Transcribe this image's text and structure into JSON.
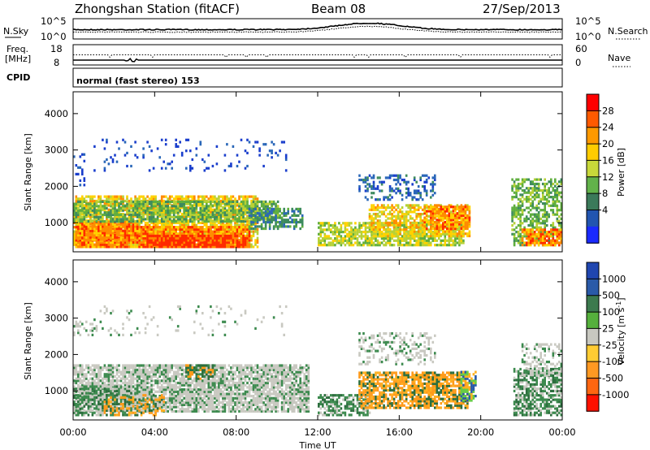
{
  "header": {
    "title": "Zhongshan Station (fitACF)",
    "beam": "Beam 08",
    "date": "27/Sep/2013"
  },
  "side_labels": {
    "nsky": "N.Sky",
    "nsearch": "N.Search",
    "freq_line1": "Freq.",
    "freq_line2": "[MHz]",
    "nave": "Nave",
    "cpid": "CPID"
  },
  "top_ticks": {
    "noise_left_top": "10^5",
    "noise_left_bottom": "10^0",
    "noise_right_top": "10^5",
    "noise_right_bottom": "10^0",
    "freq_left_top": "18",
    "freq_left_bottom": "8",
    "nave_right_top": "60",
    "nave_right_bottom": "0"
  },
  "cpid_text": "normal (fast stereo) 153",
  "xlabel": "Time UT",
  "chart_data": [
    {
      "type": "heatmap",
      "panel": "power",
      "ylabel": "Slant Range [km]",
      "y_ticks": [
        "1000",
        "2000",
        "3000",
        "4000"
      ],
      "ylim": [
        200,
        4600
      ],
      "x_ticks": [
        "00:00",
        "04:00",
        "08:00",
        "12:00",
        "16:00",
        "20:00",
        "00:00"
      ],
      "xlim_hours": [
        0,
        24
      ],
      "colorbar_label": "Power [dB]",
      "colorbar_ticks": [
        "28",
        "24",
        "20",
        "16",
        "12",
        "8",
        "4"
      ],
      "colorbar_colors": [
        "#ff0000",
        "#ff5a00",
        "#ff9900",
        "#ffcc00",
        "#c8d83a",
        "#62b24a",
        "#3b7a5a",
        "#2255b0",
        "#1a2aff"
      ],
      "colors": [
        "#1a3ecc",
        "#2a67b8",
        "#3d8b5e",
        "#5fae3e",
        "#b6d136",
        "#ffd200",
        "#ff8a00",
        "#ff2a00"
      ],
      "regions": [
        {
          "t": [
            0.0,
            9.0
          ],
          "r": [
            300,
            1700
          ],
          "base": 5,
          "den": 0.75
        },
        {
          "t": [
            0.1,
            8.6
          ],
          "r": [
            300,
            900
          ],
          "base": 6,
          "den": 0.9
        },
        {
          "t": [
            3.6,
            8.4
          ],
          "r": [
            300,
            650
          ],
          "base": 7,
          "den": 0.95
        },
        {
          "t": [
            0.2,
            3.2
          ],
          "r": [
            500,
            1000
          ],
          "base": 6,
          "den": 0.85
        },
        {
          "t": [
            0.0,
            10.0
          ],
          "r": [
            1000,
            1550
          ],
          "base": 3,
          "den": 0.7
        },
        {
          "t": [
            8.6,
            11.2
          ],
          "r": [
            800,
            1400
          ],
          "base": 2,
          "den": 0.6
        },
        {
          "t": [
            12.0,
            19.2
          ],
          "r": [
            350,
            1000
          ],
          "base": 4,
          "den": 0.7
        },
        {
          "t": [
            14.5,
            19.5
          ],
          "r": [
            600,
            1500
          ],
          "base": 5,
          "den": 0.6
        },
        {
          "t": [
            17.2,
            19.5
          ],
          "r": [
            800,
            1450
          ],
          "base": 6,
          "den": 0.7
        },
        {
          "t": [
            14.0,
            17.8
          ],
          "r": [
            1600,
            2300
          ],
          "base": 1,
          "den": 0.35
        },
        {
          "t": [
            21.5,
            24.0
          ],
          "r": [
            350,
            2200
          ],
          "base": 3,
          "den": 0.55
        },
        {
          "t": [
            22.0,
            24.0
          ],
          "r": [
            350,
            800
          ],
          "base": 6,
          "den": 0.75
        },
        {
          "t": [
            0.0,
            0.6
          ],
          "r": [
            2000,
            2900
          ],
          "base": 0,
          "den": 0.25
        },
        {
          "t": [
            1.0,
            10.5
          ],
          "r": [
            2400,
            3300
          ],
          "base": 0,
          "den": 0.08
        }
      ]
    },
    {
      "type": "heatmap",
      "panel": "velocity",
      "ylabel": "Slant Range [km]",
      "y_ticks": [
        "1000",
        "2000",
        "3000",
        "4000"
      ],
      "ylim": [
        200,
        4600
      ],
      "x_ticks": [
        "00:00",
        "04:00",
        "08:00",
        "12:00",
        "16:00",
        "20:00",
        "00:00"
      ],
      "xlim_hours": [
        0,
        24
      ],
      "colorbar_label": "Velocity [m s^-1]",
      "colorbar_ticks": [
        "1000",
        "500",
        "100",
        "25",
        "-25",
        "-100",
        "-500",
        "-1000"
      ],
      "colorbar_colors": [
        "#2046b0",
        "#2a5aa8",
        "#3c7a4e",
        "#55b03c",
        "#c8c8c0",
        "#ffcc33",
        "#ff9922",
        "#ff6611",
        "#ff1100"
      ],
      "colors": [
        "#c9c9c1",
        "#3c8a4e",
        "#2c6e3e",
        "#ff9a1a",
        "#ffb020",
        "#66cc44",
        "#2a5aa8"
      ],
      "regions": [
        {
          "t": [
            0.0,
            11.5
          ],
          "r": [
            400,
            1700
          ],
          "base": 0,
          "den": 0.8
        },
        {
          "t": [
            0.0,
            3.2
          ],
          "r": [
            300,
            1100
          ],
          "base": 1,
          "den": 0.6
        },
        {
          "t": [
            1.5,
            4.5
          ],
          "r": [
            300,
            900
          ],
          "base": 3,
          "den": 0.35
        },
        {
          "t": [
            5.5,
            6.8
          ],
          "r": [
            1300,
            1700
          ],
          "base": 2,
          "den": 0.6
        },
        {
          "t": [
            12.0,
            14.5
          ],
          "r": [
            300,
            900
          ],
          "base": 1,
          "den": 0.65
        },
        {
          "t": [
            14.0,
            19.4
          ],
          "r": [
            500,
            1500
          ],
          "base": 3,
          "den": 0.75
        },
        {
          "t": [
            19.0,
            19.8
          ],
          "r": [
            700,
            1500
          ],
          "base": 5,
          "den": 0.7
        },
        {
          "t": [
            14.0,
            17.8
          ],
          "r": [
            1700,
            2600
          ],
          "base": 0,
          "den": 0.3
        },
        {
          "t": [
            21.6,
            24.0
          ],
          "r": [
            300,
            1600
          ],
          "base": 1,
          "den": 0.65
        },
        {
          "t": [
            22.0,
            24.0
          ],
          "r": [
            1400,
            2300
          ],
          "base": 0,
          "den": 0.4
        },
        {
          "t": [
            0.0,
            1.0
          ],
          "r": [
            2500,
            2900
          ],
          "base": 0,
          "den": 0.3
        },
        {
          "t": [
            1.0,
            10.5
          ],
          "r": [
            2500,
            3300
          ],
          "base": 0,
          "den": 0.06
        }
      ]
    }
  ]
}
